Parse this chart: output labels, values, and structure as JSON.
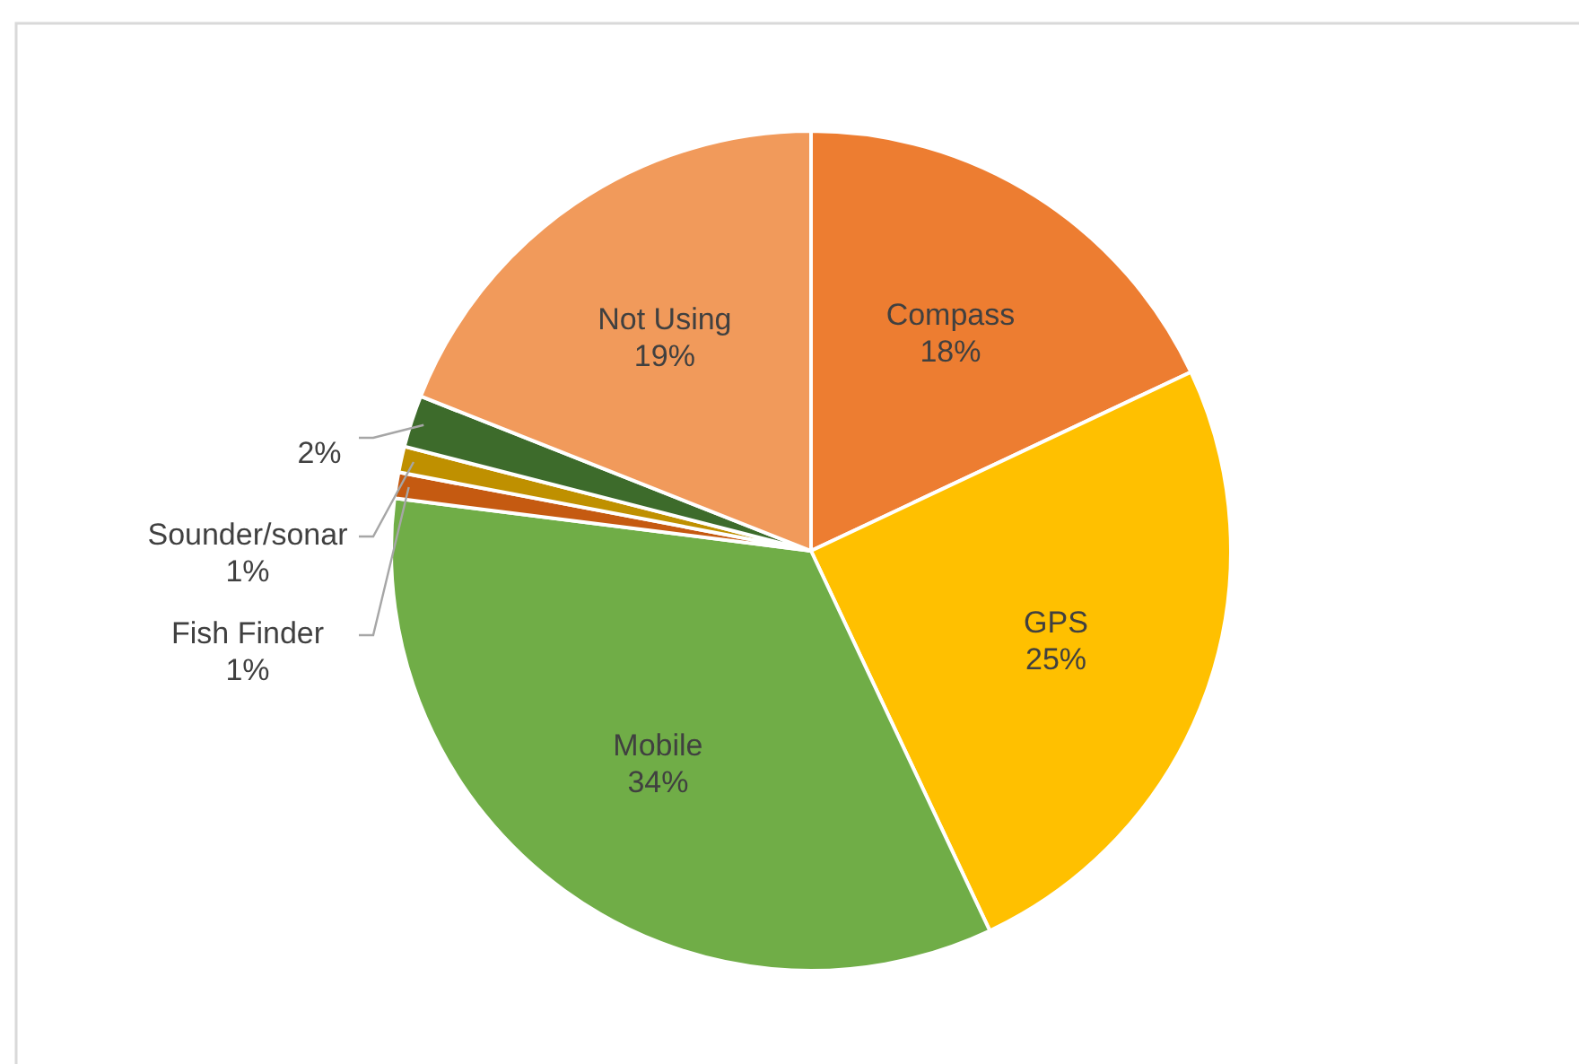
{
  "chart_data": {
    "type": "pie",
    "categories": [
      "Compass",
      "GPS",
      "Mobile",
      "Fish Finder",
      "Sounder/sonar",
      null,
      "Not Using"
    ],
    "values": [
      18,
      25,
      34,
      1,
      1,
      2,
      19
    ],
    "colors": [
      "#ed7d31",
      "#ffc000",
      "#70ad47",
      "#c55a11",
      "#bf9000",
      "#3d6b2b",
      "#f19a5b"
    ],
    "value_labels": [
      "18%",
      "25%",
      "34%",
      "1%",
      "1%",
      "2%",
      "19%"
    ]
  }
}
